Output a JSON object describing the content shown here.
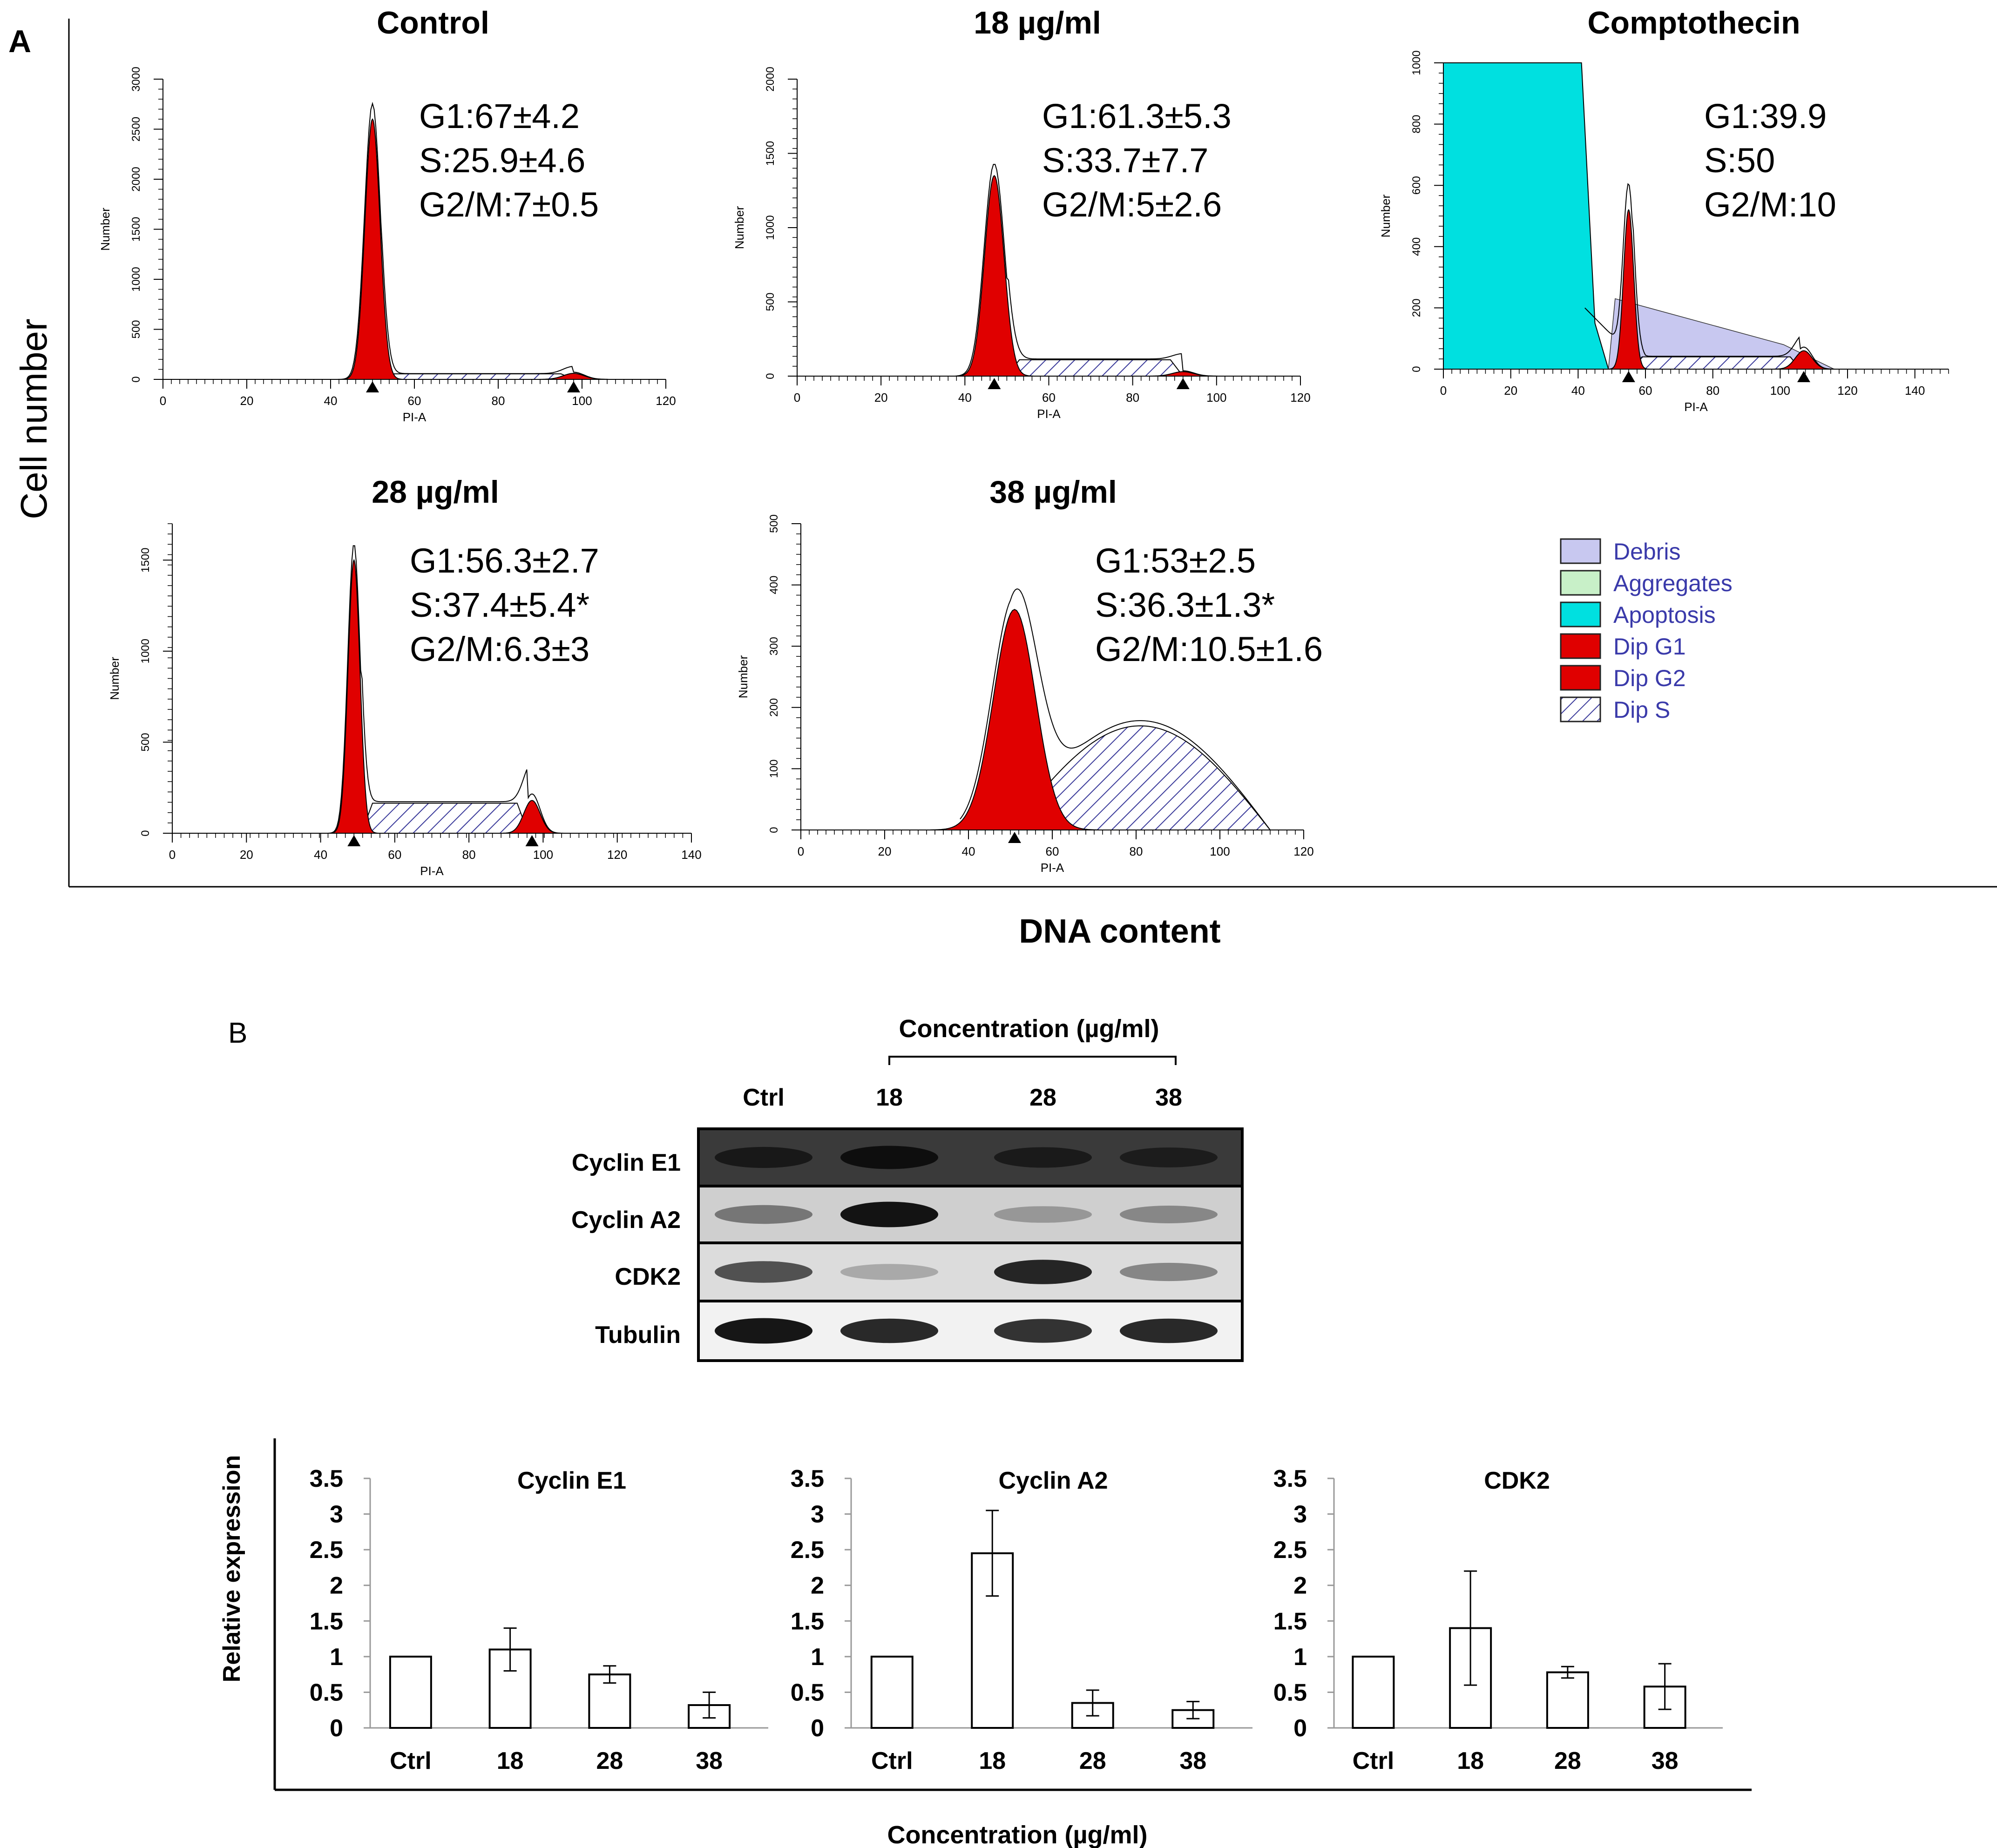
{
  "panelA": {
    "label": "A",
    "ylabel": "Cell number",
    "xlabel": "DNA content",
    "axis_xlabel": "PI-A",
    "axis_ylabel": "Number",
    "legend": [
      {
        "name": "Debris",
        "color": "#c8c8f0",
        "pattern": "solid"
      },
      {
        "name": "Aggregates",
        "color": "#c8f0c8",
        "pattern": "solid"
      },
      {
        "name": "Apoptosis",
        "color": "#00e0e0",
        "pattern": "solid"
      },
      {
        "name": "Dip G1",
        "color": "#e00000",
        "pattern": "solid"
      },
      {
        "name": "Dip G2",
        "color": "#e00000",
        "pattern": "solid"
      },
      {
        "name": "Dip S",
        "color": "#ffffff",
        "pattern": "hatch"
      }
    ]
  },
  "panelB": {
    "label": "B",
    "blot_header": "Concentration (µg/ml)",
    "lanes": [
      "Ctrl",
      "18",
      "28",
      "38"
    ],
    "rows": [
      "Cyclin E1",
      "Cyclin A2",
      "CDK2",
      "Tubulin"
    ],
    "bar_ylabel": "Relative expression",
    "bar_xlabel": "Concentration (µg/ml)"
  },
  "chart_data": [
    {
      "type": "area",
      "title": "Control",
      "xlabel": "PI-A",
      "ylabel": "Number",
      "xlim": [
        0,
        120
      ],
      "ylim": [
        0,
        3000
      ],
      "x_ticks": [
        0,
        20,
        40,
        60,
        80,
        100,
        120
      ],
      "y_ticks": [
        0,
        500,
        1000,
        1500,
        2000,
        2500,
        3000
      ],
      "g1_peak": {
        "x": 50,
        "y": 2600,
        "width": 1.8
      },
      "g2_peak": {
        "x": 98,
        "y": 60,
        "width": 2.5
      },
      "s_phase": {
        "from": 52,
        "to": 98,
        "level": 55
      },
      "annotations": [
        "G1:67±4.2",
        "S:25.9±4.6",
        "G2/M:7±0.5"
      ]
    },
    {
      "type": "area",
      "title": "18 µg/ml",
      "xlabel": "PI-A",
      "ylabel": "Number",
      "xlim": [
        0,
        120
      ],
      "ylim": [
        0,
        2000
      ],
      "x_ticks": [
        0,
        20,
        40,
        60,
        80,
        100,
        120
      ],
      "y_ticks": [
        0,
        500,
        1000,
        1500,
        2000
      ],
      "g1_peak": {
        "x": 47,
        "y": 1350,
        "width": 2.3
      },
      "g2_peak": {
        "x": 92,
        "y": 30,
        "width": 2.5
      },
      "s_phase": {
        "from": 50,
        "to": 92,
        "level": 110
      },
      "annotations": [
        "G1:61.3±5.3",
        "S:33.7±7.7",
        "G2/M:5±2.6"
      ]
    },
    {
      "type": "area",
      "title": "Comptothecin",
      "xlabel": "PI-A",
      "ylabel": "Number",
      "xlim": [
        0,
        150
      ],
      "ylim": [
        0,
        1000
      ],
      "x_ticks": [
        0,
        20,
        40,
        60,
        80,
        100,
        120,
        140
      ],
      "y_ticks": [
        0,
        200,
        400,
        600,
        800,
        1000
      ],
      "g1_peak": {
        "x": 55,
        "y": 520,
        "width": 1.5
      },
      "g2_peak": {
        "x": 107,
        "y": 60,
        "width": 2.5
      },
      "s_phase": {
        "from": 56,
        "to": 106,
        "level": 40
      },
      "apoptosis": {
        "from": 0,
        "to": 43,
        "level": 1000
      },
      "annotations": [
        "G1:39.9",
        "S:50",
        "G2/M:10"
      ]
    },
    {
      "type": "area",
      "title": "28 µg/ml",
      "xlabel": "PI-A",
      "ylabel": "Number",
      "xlim": [
        0,
        140
      ],
      "ylim": [
        0,
        1700
      ],
      "x_ticks": [
        0,
        20,
        40,
        60,
        80,
        100,
        120,
        140
      ],
      "y_ticks": [
        0,
        500,
        1000,
        1500
      ],
      "g1_peak": {
        "x": 49,
        "y": 1500,
        "width": 1.6
      },
      "g2_peak": {
        "x": 97,
        "y": 180,
        "width": 2.2
      },
      "s_phase": {
        "from": 51,
        "to": 96,
        "level": 165
      },
      "annotations": [
        "G1:56.3±2.7",
        "S:37.4±5.4*",
        "G2/M:6.3±3"
      ]
    },
    {
      "type": "area",
      "title": "38 µg/ml",
      "xlabel": "PI-A",
      "ylabel": "Number",
      "xlim": [
        0,
        120
      ],
      "ylim": [
        0,
        500
      ],
      "x_ticks": [
        0,
        20,
        40,
        60,
        80,
        100,
        120
      ],
      "y_ticks": [
        0,
        100,
        200,
        300,
        400,
        500
      ],
      "g1_peak": {
        "x": 51,
        "y": 360,
        "width": 5
      },
      "s_phase": {
        "from": 50,
        "to": 112,
        "level": 170
      },
      "annotations": [
        "G1:53±2.5",
        "S:36.3±1.3*",
        "G2/M:10.5±1.6"
      ]
    },
    {
      "type": "bar",
      "title": "Cyclin E1",
      "categories": [
        "Ctrl",
        "18",
        "28",
        "38"
      ],
      "values": [
        1.0,
        1.1,
        0.75,
        0.32
      ],
      "errors": [
        0,
        0.3,
        0.12,
        0.18
      ],
      "ylim": [
        0,
        3.5
      ],
      "y_ticks": [
        "0",
        "0.5",
        "1",
        "1.5",
        "2",
        "2.5",
        "3",
        "3.5"
      ],
      "ylabel": "Relative expression"
    },
    {
      "type": "bar",
      "title": "Cyclin A2",
      "categories": [
        "Ctrl",
        "18",
        "28",
        "38"
      ],
      "values": [
        1.0,
        2.45,
        0.35,
        0.25
      ],
      "errors": [
        0,
        0.6,
        0.18,
        0.12
      ],
      "ylim": [
        0,
        3.5
      ],
      "y_ticks": [
        "0",
        "0.5",
        "1",
        "1.5",
        "2",
        "2.5",
        "3",
        "3.5"
      ],
      "ylabel": "Relative expression"
    },
    {
      "type": "bar",
      "title": "CDK2",
      "categories": [
        "Ctrl",
        "18",
        "28",
        "38"
      ],
      "values": [
        1.0,
        1.4,
        0.78,
        0.58
      ],
      "errors": [
        0,
        0.8,
        0.08,
        0.32
      ],
      "ylim": [
        0,
        3.5
      ],
      "y_ticks": [
        "0",
        "0.5",
        "1",
        "1.5",
        "2",
        "2.5",
        "3",
        "3.5"
      ],
      "ylabel": "Relative expression"
    }
  ]
}
